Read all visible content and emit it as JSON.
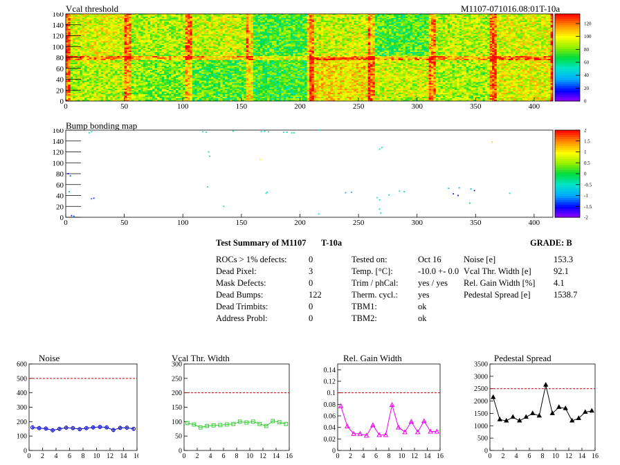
{
  "header": {
    "map1_title": "Vcal threshold",
    "module_id": "M1107-071016.08:01T-10a",
    "map2_title": "Bump bonding map"
  },
  "colors": {
    "ref_line": "#cc0000",
    "noise": "#0000cc",
    "vcal": "#33cc33",
    "gain": "#ee00ee",
    "pedestal": "#000000"
  },
  "summary": {
    "title": "Test Summary of M1107",
    "temp_label": "T-10a",
    "grade_label": "GRADE:  B",
    "col1": [
      {
        "label": "ROCs > 1% defects:",
        "value": "0"
      },
      {
        "label": "Dead Pixel:",
        "value": "3"
      },
      {
        "label": "Mask Defects:",
        "value": "0"
      },
      {
        "label": "Dead Bumps:",
        "value": "122"
      },
      {
        "label": "Dead Trimbits:",
        "value": "0"
      },
      {
        "label": "Address Probl:",
        "value": "0"
      }
    ],
    "col2": [
      {
        "label": "Tested on:",
        "value": "Oct 16"
      },
      {
        "label": "Temp. [°C]:",
        "value": "-10.0 +- 0.0"
      },
      {
        "label": "Trim / phCal:",
        "value": "yes / yes"
      },
      {
        "label": "Therm. cycl.:",
        "value": "yes"
      },
      {
        "label": "TBM1:",
        "value": "ok"
      },
      {
        "label": "TBM2:",
        "value": "ok"
      }
    ],
    "col3": [
      {
        "label": "Noise [e]",
        "value": "153.3"
      },
      {
        "label": "Vcal Thr. Width [e]",
        "value": "92.1"
      },
      {
        "label": "Rel. Gain Width [%]",
        "value": "4.1"
      },
      {
        "label": "Pedestal Spread [e]",
        "value": "1538.7"
      }
    ]
  },
  "chart_data": [
    {
      "type": "heatmap",
      "title": "Vcal threshold",
      "xlim": [
        0,
        416
      ],
      "ylim": [
        0,
        160
      ],
      "xticks": [
        0,
        50,
        100,
        150,
        200,
        250,
        300,
        350,
        400
      ],
      "yticks": [
        0,
        20,
        40,
        60,
        80,
        100,
        120,
        140,
        160
      ],
      "colorbar": {
        "min": 0,
        "max": 135,
        "ticks": [
          0,
          20,
          40,
          60,
          80,
          100,
          120
        ]
      },
      "roc_columns": 8,
      "roc_rows": 2,
      "roc_mean_values": [
        [
          95,
          88,
          92,
          74,
          92,
          75,
          90,
          94
        ],
        [
          90,
          82,
          76,
          72,
          102,
          92,
          88,
          96
        ]
      ]
    },
    {
      "type": "heatmap",
      "title": "Bump bonding map",
      "xlim": [
        0,
        416
      ],
      "ylim": [
        0,
        160
      ],
      "xticks": [
        0,
        50,
        100,
        150,
        200,
        250,
        300,
        350,
        400
      ],
      "yticks": [
        0,
        20,
        40,
        60,
        80,
        100,
        120,
        140,
        160
      ],
      "colorbar": {
        "min": -2,
        "max": 2,
        "ticks": [
          -2,
          -1.5,
          -1,
          -0.5,
          0,
          0.5,
          1,
          1.5,
          2
        ]
      },
      "points": [
        [
          2,
          80,
          -1.5
        ],
        [
          3,
          47,
          -1
        ],
        [
          4,
          76,
          -1.2
        ],
        [
          5,
          3,
          -1.6
        ],
        [
          7,
          2,
          -1.2
        ],
        [
          20,
          155,
          -0.5
        ],
        [
          22,
          157,
          -0.5
        ],
        [
          22,
          34,
          -1.2
        ],
        [
          24,
          35,
          -1.8
        ],
        [
          117,
          157,
          -0.4
        ],
        [
          120,
          156,
          -0.4
        ],
        [
          121,
          56,
          -0.4
        ],
        [
          122,
          120,
          -0.4
        ],
        [
          123,
          112,
          -0.4
        ],
        [
          135,
          20,
          -0.4
        ],
        [
          143,
          158,
          -0.4
        ],
        [
          166,
          106,
          1.0
        ],
        [
          171,
          44,
          -0.5
        ],
        [
          172,
          46,
          -0.5
        ],
        [
          167,
          157,
          -0.4
        ],
        [
          170,
          158,
          -0.4
        ],
        [
          173,
          157,
          -0.4
        ],
        [
          186,
          156,
          -0.4
        ],
        [
          189,
          156,
          -0.4
        ],
        [
          193,
          155,
          -0.4
        ],
        [
          195,
          155,
          -0.4
        ],
        [
          217,
          160,
          -0.5
        ],
        [
          216,
          6,
          -0.5
        ],
        [
          239,
          45,
          -1.0
        ],
        [
          244,
          46,
          -1.0
        ],
        [
          268,
          125,
          -0.4
        ],
        [
          270,
          128,
          -0.4
        ],
        [
          266,
          36,
          -0.5
        ],
        [
          268,
          32,
          -0.5
        ],
        [
          269,
          8,
          -0.6
        ],
        [
          268,
          15,
          -0.4
        ],
        [
          276,
          41,
          -0.5
        ],
        [
          285,
          48,
          -0.5
        ],
        [
          289,
          47,
          -0.5
        ],
        [
          327,
          53,
          -1.0
        ],
        [
          331,
          43,
          -1.6
        ],
        [
          335,
          40,
          -1.6
        ],
        [
          336,
          54,
          -1.0
        ],
        [
          346,
          52,
          -1.0
        ],
        [
          349,
          49,
          -1.6
        ],
        [
          345,
          26,
          0.0
        ],
        [
          364,
          138,
          1.2
        ],
        [
          379,
          44,
          -0.5
        ]
      ]
    },
    {
      "type": "line",
      "title": "Noise",
      "x": [
        0,
        1,
        2,
        3,
        4,
        5,
        6,
        7,
        8,
        9,
        10,
        11,
        12,
        13,
        14,
        15
      ],
      "values": [
        160,
        155,
        152,
        140,
        150,
        158,
        155,
        148,
        155,
        160,
        163,
        160,
        142,
        157,
        158,
        150
      ],
      "error": [
        14,
        14,
        14,
        14,
        14,
        14,
        14,
        14,
        14,
        14,
        14,
        14,
        14,
        14,
        14,
        14
      ],
      "reference": 500,
      "xlim": [
        0,
        16
      ],
      "ylim": [
        0,
        600
      ],
      "xticks": [
        0,
        2,
        4,
        6,
        8,
        10,
        12,
        14,
        16
      ],
      "yticks": [
        0,
        100,
        200,
        300,
        400,
        500,
        600
      ]
    },
    {
      "type": "line",
      "title": "Vcal Thr. Width",
      "x": [
        0,
        1,
        2,
        3,
        4,
        5,
        6,
        7,
        8,
        9,
        10,
        11,
        12,
        13,
        14,
        15
      ],
      "values": [
        95,
        90,
        80,
        85,
        87,
        88,
        90,
        92,
        100,
        97,
        100,
        92,
        85,
        102,
        98,
        92
      ],
      "reference": 200,
      "xlim": [
        0,
        16
      ],
      "ylim": [
        0,
        300
      ],
      "xticks": [
        0,
        2,
        4,
        6,
        8,
        10,
        12,
        14,
        16
      ],
      "yticks": [
        0,
        50,
        100,
        150,
        200,
        250,
        300
      ]
    },
    {
      "type": "line",
      "title": "Rel. Gain Width",
      "x": [
        0,
        1,
        2,
        3,
        4,
        5,
        6,
        7,
        8,
        9,
        10,
        11,
        12,
        13,
        14,
        15
      ],
      "values": [
        0.077,
        0.042,
        0.029,
        0.029,
        0.026,
        0.044,
        0.027,
        0.027,
        0.079,
        0.04,
        0.032,
        0.05,
        0.032,
        0.051,
        0.033,
        0.033
      ],
      "reference": 0.1,
      "xlim": [
        0,
        16
      ],
      "ylim": [
        0,
        0.15
      ],
      "xticks": [
        0,
        2,
        4,
        6,
        8,
        10,
        12,
        14,
        16
      ],
      "yticks": [
        0,
        0.02,
        0.04,
        0.06,
        0.08,
        0.1,
        0.12,
        0.14
      ]
    },
    {
      "type": "line",
      "title": "Pedestal Spread",
      "x": [
        0,
        1,
        2,
        3,
        4,
        5,
        6,
        7,
        8,
        9,
        10,
        11,
        12,
        13,
        14,
        15
      ],
      "values": [
        2150,
        1250,
        1200,
        1350,
        1200,
        1350,
        1500,
        1400,
        2650,
        1500,
        1750,
        1700,
        1200,
        1300,
        1550,
        1600
      ],
      "reference": 2500,
      "xlim": [
        0,
        16
      ],
      "ylim": [
        0,
        3500
      ],
      "xticks": [
        0,
        2,
        4,
        6,
        8,
        10,
        12,
        14,
        16
      ],
      "yticks": [
        0,
        500,
        1000,
        1500,
        2000,
        2500,
        3000,
        3500
      ]
    }
  ]
}
